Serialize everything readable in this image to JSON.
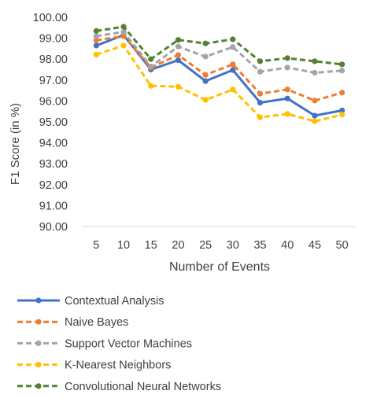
{
  "chart_data": {
    "type": "line",
    "xlabel": "Number of Events",
    "ylabel": "F1 Score (in %)",
    "x": [
      5,
      10,
      15,
      20,
      25,
      30,
      35,
      40,
      45,
      50
    ],
    "x_tick_labels": [
      "5",
      "10",
      "15",
      "20",
      "25",
      "30",
      "35",
      "40",
      "45",
      "50"
    ],
    "ylim": [
      90,
      100
    ],
    "y_tick_labels": [
      "90.00",
      "91.00",
      "92.00",
      "93.00",
      "94.00",
      "95.00",
      "96.00",
      "97.00",
      "98.00",
      "99.00",
      "100.00"
    ],
    "grid": false,
    "legend_position": "bottom",
    "series": [
      {
        "name": "Contextual Analysis",
        "color": "#4472C4",
        "dash": "solid",
        "values": [
          98.65,
          99.15,
          97.5,
          97.95,
          96.95,
          97.48,
          95.92,
          96.12,
          95.3,
          95.55
        ]
      },
      {
        "name": "Naive Bayes",
        "color": "#ED7D31",
        "dash": "dashed",
        "values": [
          98.9,
          99.1,
          97.6,
          98.2,
          97.25,
          97.75,
          96.35,
          96.55,
          96.02,
          96.4
        ]
      },
      {
        "name": "Support Vector Machines",
        "color": "#A5A5A5",
        "dash": "dashed",
        "values": [
          99.1,
          99.3,
          97.65,
          98.6,
          98.12,
          98.58,
          97.4,
          97.6,
          97.35,
          97.45
        ]
      },
      {
        "name": "K-Nearest Neighbors",
        "color": "#FFC000",
        "dash": "dashed",
        "values": [
          98.22,
          98.65,
          96.72,
          96.68,
          96.05,
          96.55,
          95.22,
          95.38,
          95.03,
          95.35
        ]
      },
      {
        "name": "Convolutional Neural Networks",
        "color": "#548235",
        "dash": "dashed",
        "values": [
          99.35,
          99.55,
          98.0,
          98.92,
          98.75,
          98.95,
          97.9,
          98.05,
          97.9,
          97.75
        ]
      }
    ]
  }
}
